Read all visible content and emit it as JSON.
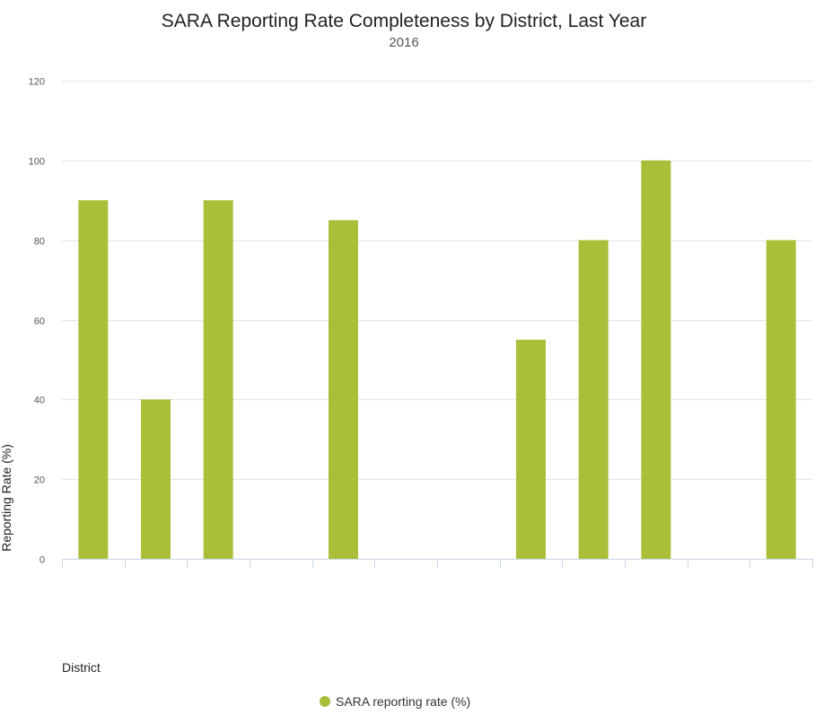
{
  "chart_data": {
    "type": "bar",
    "title": "SARA Reporting Rate Completeness by District, Last Year",
    "subtitle": "2016",
    "xlabel": "District",
    "ylabel": "Reporting Rate (%)",
    "ylim": [
      0,
      120
    ],
    "yticks": [
      "0",
      "20",
      "40",
      "60",
      "80",
      "100",
      "120"
    ],
    "grid": true,
    "legend_position": "bottom-center",
    "series": [
      {
        "name": "SARA reporting rate (%)",
        "color": "#a9bf3a",
        "values": [
          90,
          40,
          90,
          null,
          85,
          null,
          null,
          55,
          80,
          100,
          null,
          80
        ]
      }
    ]
  }
}
